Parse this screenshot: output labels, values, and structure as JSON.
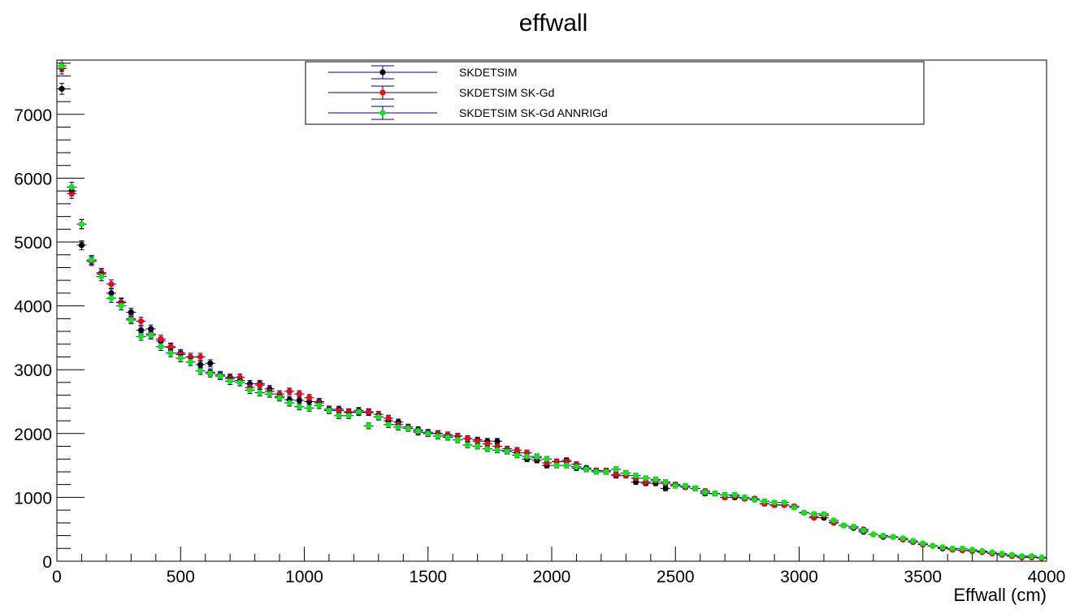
{
  "chart_data": {
    "type": "scatter",
    "title": "effwall",
    "xlabel": "Effwall (cm)",
    "ylabel": "",
    "xlim": [
      0,
      4000
    ],
    "ylim": [
      0,
      7850
    ],
    "x_ticks": [
      0,
      500,
      1000,
      1500,
      2000,
      2500,
      3000,
      3500,
      4000
    ],
    "y_ticks": [
      0,
      1000,
      2000,
      3000,
      4000,
      5000,
      6000,
      7000
    ],
    "bin_width": 40,
    "grid": false,
    "legend_position": "top-center",
    "x": [
      20,
      60,
      100,
      140,
      180,
      220,
      260,
      300,
      340,
      380,
      420,
      460,
      500,
      540,
      580,
      620,
      660,
      700,
      740,
      780,
      820,
      860,
      900,
      940,
      980,
      1020,
      1060,
      1100,
      1140,
      1180,
      1220,
      1260,
      1300,
      1340,
      1380,
      1420,
      1460,
      1500,
      1540,
      1580,
      1620,
      1660,
      1700,
      1740,
      1780,
      1820,
      1860,
      1900,
      1940,
      1980,
      2020,
      2060,
      2100,
      2140,
      2180,
      2220,
      2260,
      2300,
      2340,
      2380,
      2420,
      2460,
      2500,
      2540,
      2580,
      2620,
      2660,
      2700,
      2740,
      2780,
      2820,
      2860,
      2900,
      2940,
      2980,
      3020,
      3060,
      3100,
      3140,
      3180,
      3220,
      3260,
      3300,
      3340,
      3380,
      3420,
      3460,
      3500,
      3540,
      3580,
      3620,
      3660,
      3700,
      3740,
      3780,
      3820,
      3860,
      3900,
      3940,
      3980
    ],
    "series": [
      {
        "name": "SKDETSIM",
        "color": "#000000",
        "values": [
          7400,
          5800,
          4950,
          4700,
          4500,
          4200,
          4050,
          3900,
          3620,
          3640,
          3450,
          3350,
          3260,
          3200,
          3080,
          3100,
          2920,
          2880,
          2830,
          2780,
          2780,
          2700,
          2580,
          2530,
          2520,
          2500,
          2500,
          2380,
          2380,
          2330,
          2360,
          2330,
          2260,
          2200,
          2180,
          2100,
          2060,
          2020,
          2000,
          1960,
          1960,
          1920,
          1900,
          1880,
          1880,
          1730,
          1700,
          1600,
          1580,
          1500,
          1560,
          1580,
          1460,
          1460,
          1420,
          1400,
          1340,
          1380,
          1240,
          1220,
          1220,
          1140,
          1200,
          1160,
          1140,
          1060,
          1060,
          1000,
          1000,
          980,
          980,
          900,
          880,
          880,
          860,
          760,
          700,
          680,
          610,
          560,
          520,
          460,
          420,
          380,
          380,
          340,
          300,
          260,
          240,
          200,
          180,
          170,
          160,
          150,
          120,
          100,
          80,
          60,
          60,
          50
        ]
      },
      {
        "name": "SKDETSIM SK-Gd",
        "color": "#ff0000",
        "values": [
          7720,
          5760,
          5280,
          4700,
          4520,
          4340,
          4060,
          3800,
          3760,
          3560,
          3480,
          3360,
          3240,
          3200,
          3200,
          2960,
          2900,
          2860,
          2880,
          2720,
          2760,
          2660,
          2620,
          2660,
          2620,
          2560,
          2480,
          2380,
          2360,
          2340,
          2330,
          2340,
          2300,
          2240,
          2140,
          2100,
          2020,
          2000,
          2000,
          1980,
          1960,
          1920,
          1880,
          1840,
          1800,
          1760,
          1740,
          1700,
          1620,
          1540,
          1560,
          1560,
          1520,
          1440,
          1420,
          1420,
          1360,
          1340,
          1300,
          1240,
          1260,
          1220,
          1200,
          1160,
          1140,
          1100,
          1060,
          1000,
          1020,
          980,
          980,
          900,
          880,
          880,
          860,
          760,
          680,
          720,
          600,
          560,
          540,
          500,
          420,
          400,
          380,
          340,
          300,
          260,
          240,
          210,
          180,
          170,
          160,
          140,
          120,
          100,
          80,
          60,
          60,
          50
        ]
      },
      {
        "name": "SKDETSIM SK-Gd ANNRIGd",
        "color": "#00ee00",
        "values": [
          7760,
          5860,
          5280,
          4720,
          4460,
          4120,
          4000,
          3780,
          3520,
          3540,
          3360,
          3260,
          3180,
          3120,
          2980,
          2940,
          2900,
          2820,
          2800,
          2680,
          2640,
          2620,
          2560,
          2480,
          2420,
          2400,
          2440,
          2360,
          2280,
          2280,
          2340,
          2120,
          2260,
          2140,
          2100,
          2080,
          2040,
          2000,
          1960,
          1940,
          1900,
          1820,
          1800,
          1760,
          1740,
          1720,
          1660,
          1640,
          1640,
          1600,
          1500,
          1500,
          1480,
          1440,
          1400,
          1400,
          1440,
          1380,
          1340,
          1300,
          1280,
          1240,
          1180,
          1180,
          1140,
          1080,
          1060,
          1040,
          1040,
          1000,
          960,
          940,
          920,
          920,
          840,
          760,
          740,
          740,
          640,
          560,
          540,
          480,
          420,
          400,
          380,
          360,
          320,
          280,
          240,
          220,
          200,
          200,
          180,
          160,
          140,
          120,
          100,
          80,
          80,
          60
        ]
      }
    ]
  }
}
